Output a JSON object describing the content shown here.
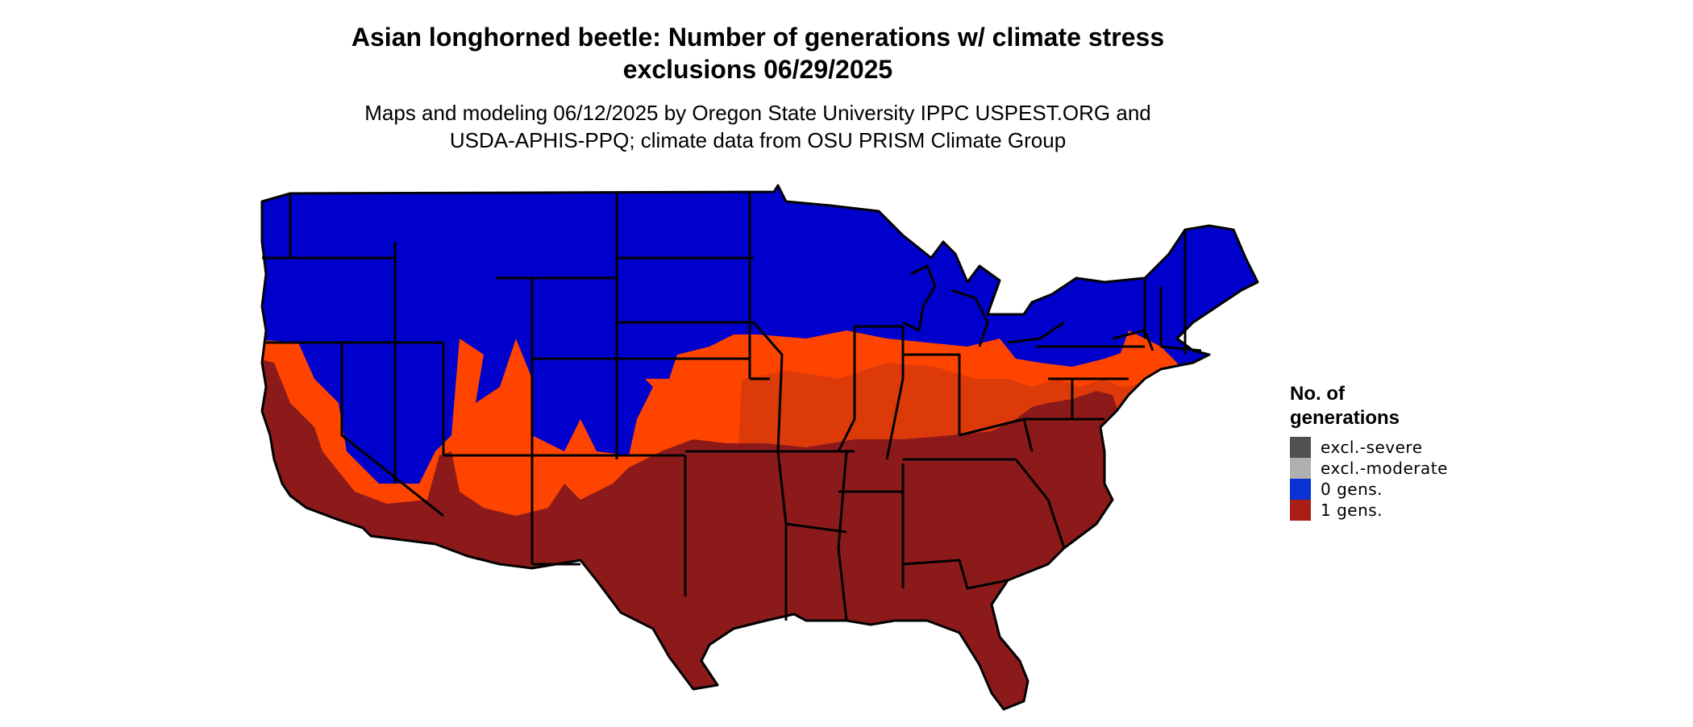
{
  "title_line1": "Asian longhorned beetle: Number of generations w/ climate stress",
  "title_line2": "exclusions 06/29/2025",
  "subtitle_line1": "Maps and modeling 06/12/2025 by Oregon State University IPPC USPEST.ORG and",
  "subtitle_line2": "USDA-APHIS-PPQ; climate data from OSU PRISM Climate Group",
  "legend": {
    "title": "No. of generations",
    "items": [
      {
        "label": "excl.-severe",
        "color": "#505050"
      },
      {
        "label": "excl.-moderate",
        "color": "#b0b0b0"
      },
      {
        "label": "0 gens.",
        "color": "#0a32d2"
      },
      {
        "label": "1 gens.",
        "color": "#a81e12"
      }
    ]
  },
  "map_colors": {
    "zero_gens": "#0000cc",
    "transition_orange": "#ff4400",
    "transition_dark_orange": "#dd3a0a",
    "one_gen": "#8c1a1a",
    "borders": "#000000"
  }
}
